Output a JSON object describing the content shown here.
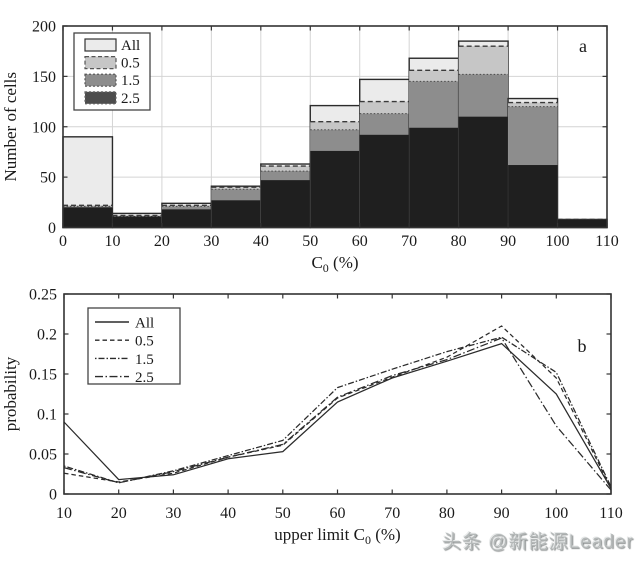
{
  "watermark": {
    "text": "头条 @新能源Leader",
    "color": "#b4b8b8"
  },
  "colors": {
    "frame": "#333333",
    "grid": "#d4d4d4",
    "text": "#1a1a1a",
    "line": "#2b2b2b",
    "fill_all": "#ebebeb",
    "fill_05": "#c6c6c6",
    "fill_15": "#8d8d8d",
    "fill_25": "#1f1f1f",
    "legend_fill_25": "#4d4d4d"
  },
  "chart_data": [
    {
      "id": "panel-a",
      "type": "bar",
      "panel_label": "a",
      "ylabel": "Number of cells",
      "xlabel_parts": {
        "prefix": "C",
        "sub": "0",
        "suffix": " (%)"
      },
      "xlim": [
        0,
        110
      ],
      "ylim": [
        0,
        200
      ],
      "xtick_labels": [
        "0",
        "10",
        "20",
        "30",
        "40",
        "50",
        "60",
        "70",
        "80",
        "90",
        "100",
        "110"
      ],
      "xtick_values": [
        0,
        10,
        20,
        30,
        40,
        50,
        60,
        70,
        80,
        90,
        100,
        110
      ],
      "ytick_labels": [
        "0",
        "50",
        "100",
        "150",
        "200"
      ],
      "ytick_values": [
        0,
        50,
        100,
        150,
        200
      ],
      "grid": true,
      "legend_position": "top-left",
      "bin_edges": [
        0,
        10,
        20,
        30,
        40,
        50,
        60,
        70,
        80,
        90,
        100,
        110
      ],
      "series": [
        {
          "name": "All",
          "style": "solid",
          "values": [
            90,
            14,
            24,
            41,
            63,
            121,
            147,
            168,
            185,
            128,
            8
          ]
        },
        {
          "name": "0.5",
          "style": "dashed",
          "values": [
            22,
            12,
            22,
            40,
            61,
            105,
            125,
            156,
            180,
            124,
            8
          ]
        },
        {
          "name": "1.5",
          "style": "dash-dot-dot",
          "values": [
            21,
            11,
            21,
            38,
            56,
            97,
            113,
            145,
            152,
            120,
            8
          ]
        },
        {
          "name": "2.5",
          "style": "dash-dot",
          "values": [
            20,
            11,
            18,
            27,
            47,
            76,
            92,
            99,
            110,
            62,
            8
          ]
        }
      ]
    },
    {
      "id": "panel-b",
      "type": "line",
      "panel_label": "b",
      "ylabel": "probability",
      "xlabel_parts": {
        "prefix": "upper limit C",
        "sub": "0",
        "suffix": "  (%)"
      },
      "xlim": [
        10,
        110
      ],
      "ylim": [
        0,
        0.25
      ],
      "xtick_labels": [
        "10",
        "20",
        "30",
        "40",
        "50",
        "60",
        "70",
        "80",
        "90",
        "100",
        "110"
      ],
      "xtick_values": [
        10,
        20,
        30,
        40,
        50,
        60,
        70,
        80,
        90,
        100,
        110
      ],
      "ytick_labels": [
        "0",
        "0.05",
        "0.1",
        "0.15",
        "0.2",
        "0.25"
      ],
      "ytick_values": [
        0,
        0.05,
        0.1,
        0.15,
        0.2,
        0.25
      ],
      "grid": false,
      "legend_position": "top-left",
      "x": [
        10,
        20,
        30,
        40,
        50,
        60,
        70,
        80,
        90,
        100,
        110
      ],
      "series": [
        {
          "name": "All",
          "style": "solid",
          "y": [
            0.09,
            0.018,
            0.024,
            0.044,
            0.053,
            0.115,
            0.145,
            0.166,
            0.188,
            0.125,
            0.007
          ]
        },
        {
          "name": "0.5",
          "style": "dashed",
          "y": [
            0.026,
            0.015,
            0.026,
            0.046,
            0.061,
            0.12,
            0.146,
            0.171,
            0.21,
            0.145,
            0.007
          ]
        },
        {
          "name": "1.5",
          "style": "dash-dot-dot",
          "y": [
            0.035,
            0.014,
            0.029,
            0.048,
            0.067,
            0.133,
            0.156,
            0.178,
            0.196,
            0.152,
            0.009
          ]
        },
        {
          "name": "2.5",
          "style": "dash-dot",
          "y": [
            0.033,
            0.014,
            0.028,
            0.046,
            0.062,
            0.121,
            0.148,
            0.168,
            0.195,
            0.085,
            0.005
          ]
        }
      ]
    }
  ]
}
